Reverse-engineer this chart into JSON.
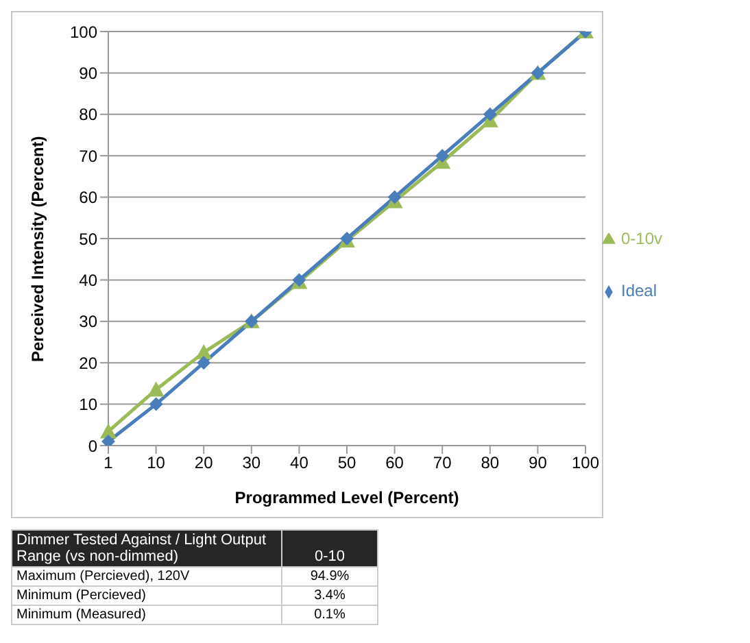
{
  "chart_data": {
    "type": "line",
    "xlabel": "Programmed Level (Percent)",
    "ylabel": "Perceived Intensity (Percent)",
    "categories": [
      "1",
      "10",
      "20",
      "30",
      "40",
      "50",
      "60",
      "70",
      "80",
      "90",
      "100"
    ],
    "series": [
      {
        "name": "Ideal",
        "color": "#4a7ebb",
        "marker": "diamond",
        "values": [
          1,
          10,
          20,
          30,
          40,
          50,
          60,
          70,
          80,
          90,
          100
        ]
      },
      {
        "name": "0-10v",
        "color": "#9bbb59",
        "marker": "triangle",
        "values": [
          3.4,
          13.5,
          22.5,
          30,
          39.5,
          49.5,
          59,
          68.5,
          78.5,
          90,
          100
        ]
      }
    ],
    "ylim": [
      0,
      100
    ],
    "yticks": [
      0,
      10,
      20,
      30,
      40,
      50,
      60,
      70,
      80,
      90,
      100
    ],
    "grid": "y",
    "legend": "right",
    "annotations": [
      "Dimmer Tested Against / Light Output Range (vs non-dimmed)",
      "0-10",
      "Maximum (Percieved), 120V",
      "94.9%",
      "Minimum (Percieved)",
      "3.4%",
      "Minimum (Measured)",
      "0.1%"
    ]
  }
}
